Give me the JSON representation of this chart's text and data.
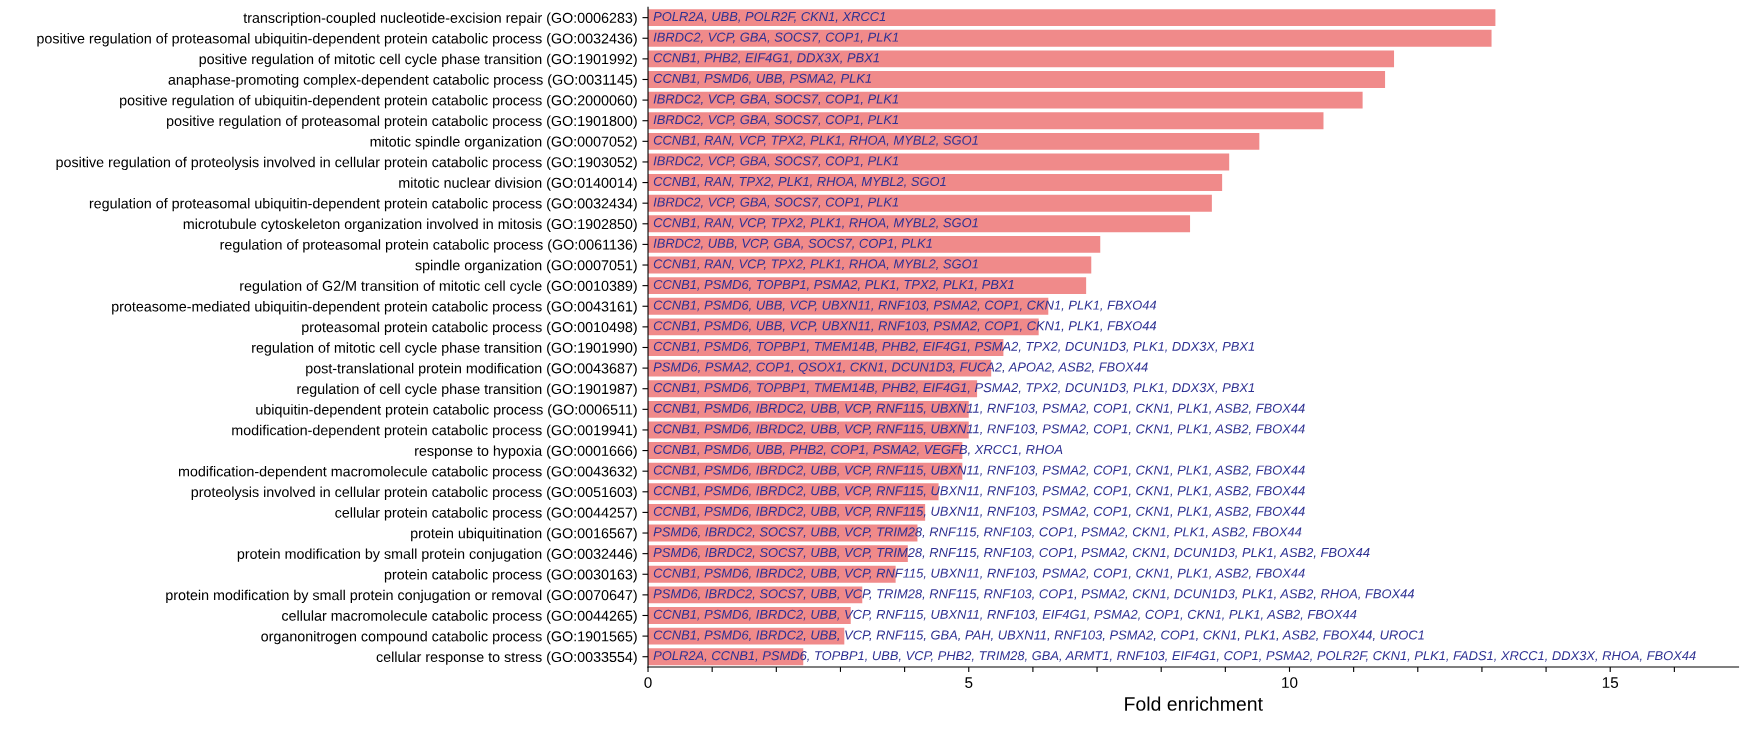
{
  "chart_data": {
    "type": "bar",
    "orientation": "horizontal",
    "xlabel": "Fold enrichment",
    "categories": [
      "transcription-coupled nucleotide-excision repair (GO:0006283)",
      "positive regulation of proteasomal ubiquitin-dependent protein catabolic process (GO:0032436)",
      "positive regulation of mitotic cell cycle phase transition (GO:1901992)",
      "anaphase-promoting complex-dependent catabolic process (GO:0031145)",
      "positive regulation of ubiquitin-dependent protein catabolic process (GO:2000060)",
      "positive regulation of proteasomal protein catabolic process (GO:1901800)",
      "mitotic spindle organization (GO:0007052)",
      "positive regulation of proteolysis involved in cellular protein catabolic process (GO:1903052)",
      "mitotic nuclear division (GO:0140014)",
      "regulation of proteasomal ubiquitin-dependent protein catabolic process (GO:0032434)",
      "microtubule cytoskeleton organization involved in mitosis (GO:1902850)",
      "regulation of proteasomal protein catabolic process (GO:0061136)",
      "spindle organization (GO:0007051)",
      "regulation of G2/M transition of mitotic cell cycle (GO:0010389)",
      "proteasome-mediated ubiquitin-dependent protein catabolic process (GO:0043161)",
      "proteasomal protein catabolic process (GO:0010498)",
      "regulation of mitotic cell cycle phase transition (GO:1901990)",
      "post-translational protein modification (GO:0043687)",
      "regulation of cell cycle phase transition (GO:1901987)",
      "ubiquitin-dependent protein catabolic process (GO:0006511)",
      "modification-dependent protein catabolic process (GO:0019941)",
      "response to hypoxia (GO:0001666)",
      "modification-dependent macromolecule catabolic process (GO:0043632)",
      "proteolysis involved in cellular protein catabolic process (GO:0051603)",
      "cellular protein catabolic process (GO:0044257)",
      "protein ubiquitination (GO:0016567)",
      "protein modification by small protein conjugation (GO:0032446)",
      "protein catabolic process (GO:0030163)",
      "protein modification by small protein conjugation or removal (GO:0070647)",
      "cellular macromolecule catabolic process (GO:0044265)",
      "organonitrogen compound catabolic process (GO:1901565)",
      "cellular response to stress (GO:0033554)"
    ],
    "values": [
      13.21,
      13.15,
      11.63,
      11.49,
      11.14,
      10.53,
      9.53,
      9.06,
      8.95,
      8.79,
      8.45,
      7.05,
      6.91,
      6.83,
      6.24,
      6.09,
      5.54,
      5.35,
      5.13,
      5.0,
      5.0,
      4.9,
      4.9,
      4.53,
      4.32,
      4.2,
      4.05,
      3.86,
      3.34,
      3.16,
      3.06,
      2.42
    ],
    "color": "#f08a8a",
    "xlim": [
      0,
      17
    ],
    "xticks": [
      0,
      {
        "value": 1,
        "label": null
      },
      {
        "value": 2,
        "label": null
      },
      {
        "value": 3,
        "label": null
      },
      {
        "value": 4,
        "label": null
      },
      5,
      {
        "value": 6,
        "label": null
      },
      {
        "value": 7,
        "label": null
      },
      {
        "value": 8,
        "label": null
      },
      {
        "value": 9,
        "label": null
      },
      10,
      {
        "value": 11,
        "label": null
      },
      {
        "value": 12,
        "label": null
      },
      {
        "value": 13,
        "label": null
      },
      {
        "value": 14,
        "label": null
      },
      15,
      {
        "value": 16,
        "label": null
      }
    ],
    "value_labels": [
      "POLR2A, UBB, POLR2F, CKN1, XRCC1",
      "IBRDC2, VCP, GBA, SOCS7, COP1, PLK1",
      "CCNB1, PHB2, EIF4G1, DDX3X, PBX1",
      "CCNB1, PSMD6, UBB, PSMA2, PLK1",
      "IBRDC2, VCP, GBA, SOCS7, COP1, PLK1",
      "IBRDC2, VCP, GBA, SOCS7, COP1, PLK1",
      "CCNB1, RAN, VCP, TPX2, PLK1, RHOA, MYBL2, SGO1",
      "IBRDC2, VCP, GBA, SOCS7, COP1, PLK1",
      "CCNB1, RAN, TPX2, PLK1, RHOA, MYBL2, SGO1",
      "IBRDC2, VCP, GBA, SOCS7, COP1, PLK1",
      "CCNB1, RAN, VCP, TPX2, PLK1, RHOA, MYBL2, SGO1",
      "IBRDC2, UBB, VCP, GBA, SOCS7, COP1, PLK1",
      "CCNB1, RAN, VCP, TPX2, PLK1, RHOA, MYBL2, SGO1",
      "CCNB1, PSMD6, TOPBP1, PSMA2, PLK1, TPX2, PLK1, PBX1",
      "CCNB1, PSMD6, UBB, VCP, UBXN11, RNF103, PSMA2, COP1, CKN1, PLK1, FBXO44",
      "CCNB1, PSMD6, UBB, VCP, UBXN11, RNF103, PSMA2, COP1, CKN1, PLK1, FBXO44",
      "CCNB1, PSMD6, TOPBP1, TMEM14B, PHB2, EIF4G1, PSMA2, TPX2, DCUN1D3, PLK1, DDX3X, PBX1",
      "PSMD6, PSMA2, COP1, QSOX1, CKN1, DCUN1D3, FUCA2, APOA2, ASB2, FBOX44",
      "CCNB1, PSMD6, TOPBP1, TMEM14B, PHB2, EIF4G1, PSMA2, TPX2, DCUN1D3, PLK1, DDX3X, PBX1",
      "CCNB1, PSMD6, IBRDC2, UBB, VCP, RNF115, UBXN11, RNF103, PSMA2, COP1, CKN1, PLK1, ASB2, FBOX44",
      "CCNB1, PSMD6, IBRDC2, UBB, VCP, RNF115, UBXN11, RNF103, PSMA2, COP1, CKN1, PLK1, ASB2, FBOX44",
      "CCNB1, PSMD6, UBB, PHB2, COP1, PSMA2, VEGFB, XRCC1, RHOA",
      "CCNB1, PSMD6, IBRDC2, UBB, VCP, RNF115, UBXN11, RNF103, PSMA2, COP1, CKN1, PLK1, ASB2, FBOX44",
      "CCNB1, PSMD6, IBRDC2, UBB, VCP, RNF115, UBXN11, RNF103, PSMA2, COP1, CKN1, PLK1, ASB2, FBOX44",
      "CCNB1, PSMD6, IBRDC2, UBB, VCP, RNF115, UBXN11, RNF103, PSMA2, COP1, CKN1, PLK1, ASB2, FBOX44",
      "PSMD6, IBRDC2, SOCS7, UBB, VCP, TRIM28, RNF115, RNF103, COP1, PSMA2, CKN1, PLK1, ASB2, FBOX44",
      "PSMD6, IBRDC2, SOCS7, UBB, VCP, TRIM28, RNF115, RNF103, COP1, PSMA2, CKN1, DCUN1D3, PLK1, ASB2, FBOX44",
      "CCNB1, PSMD6, IBRDC2, UBB, VCP, RNF115, UBXN11, RNF103, PSMA2, COP1, CKN1, PLK1, ASB2, FBOX44",
      "PSMD6, IBRDC2, SOCS7, UBB, VCP, TRIM28, RNF115, RNF103, COP1, PSMA2, CKN1, DCUN1D3, PLK1, ASB2, RHOA, FBOX44",
      "CCNB1, PSMD6, IBRDC2, UBB, VCP, RNF115, UBXN11, RNF103, EIF4G1, PSMA2, COP1, CKN1, PLK1, ASB2, FBOX44",
      "CCNB1, PSMD6, IBRDC2, UBB, VCP, RNF115, GBA, PAH, UBXN11, RNF103, PSMA2, COP1, CKN1, PLK1, ASB2, FBOX44, UROC1",
      "POLR2A, CCNB1, PSMD6, TOPBP1, UBB, VCP, PHB2, TRIM28, GBA, ARMT1, RNF103, EIF4G1, COP1, PSMA2, POLR2F, CKN1, PLK1, FADS1, XRCC1, DDX3X, RHOA, FBOX44"
    ]
  }
}
